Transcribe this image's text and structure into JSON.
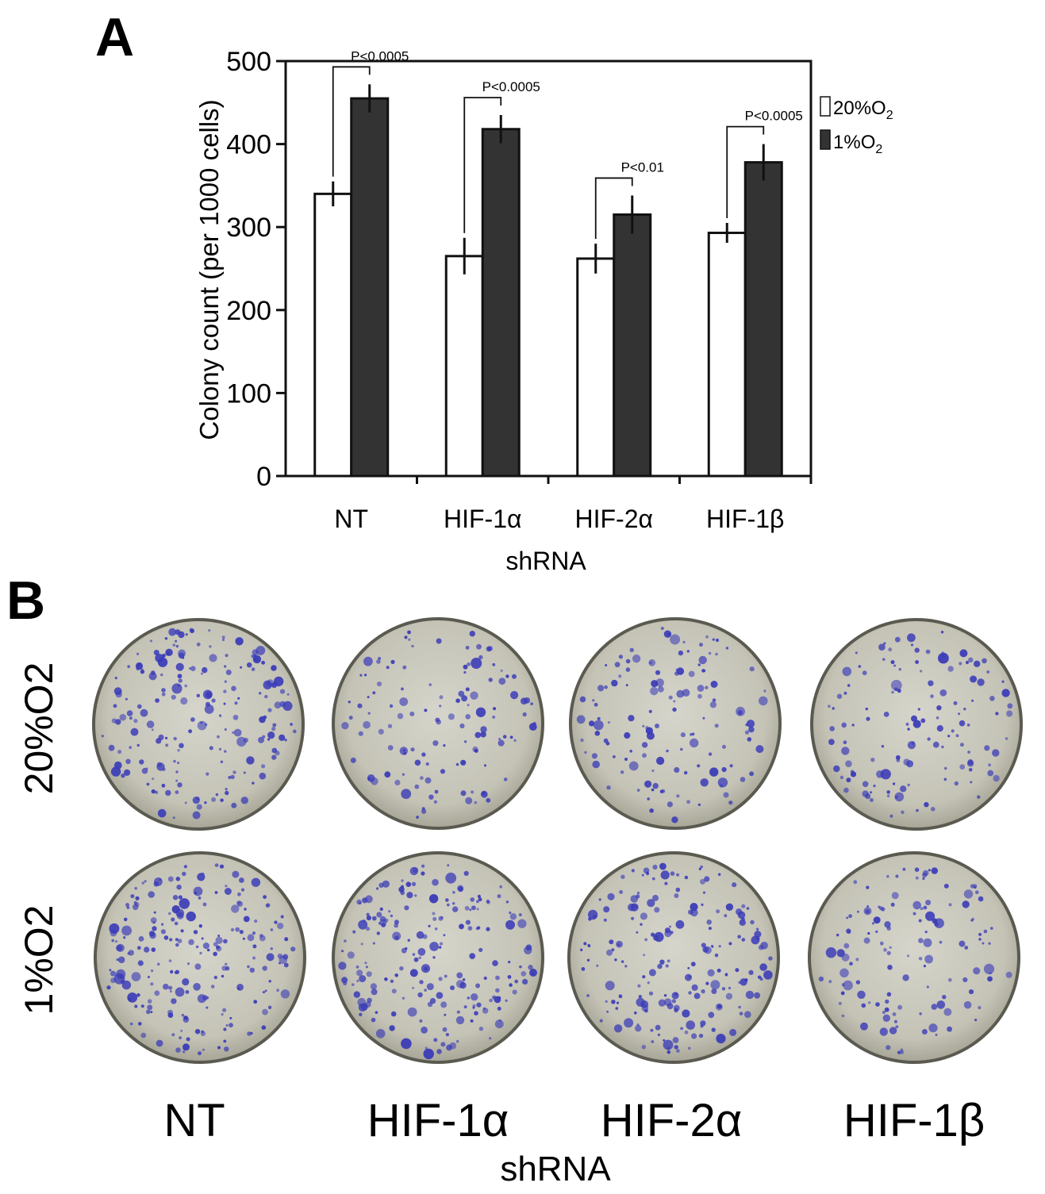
{
  "panel_a": {
    "letter": "A",
    "legend": [
      {
        "label": "20%O",
        "sub": "2",
        "color": "#ffffff"
      },
      {
        "label": "1%O",
        "sub": "2",
        "color": "#333333"
      }
    ]
  },
  "chart_data": {
    "type": "bar",
    "categories": [
      "NT",
      "HIF-1α",
      "HIF-2α",
      "HIF-1β"
    ],
    "series": [
      {
        "name": "20%O2",
        "values": [
          340,
          265,
          262,
          293
        ],
        "errors": [
          15,
          22,
          18,
          12
        ],
        "color": "#ffffff"
      },
      {
        "name": "1%O2",
        "values": [
          455,
          418,
          315,
          378
        ],
        "errors": [
          17,
          17,
          23,
          22
        ],
        "color": "#333333"
      }
    ],
    "pvalues": [
      "P<0.0005",
      "P<0.0005",
      "P<0.01",
      "P<0.0005"
    ],
    "xlabel": "shRNA",
    "ylabel": "Colony count (per 1000 cells)",
    "ylim": [
      0,
      500
    ],
    "yticks": [
      0,
      100,
      200,
      300,
      400,
      500
    ],
    "grid": false,
    "legend_position": "right"
  },
  "panel_b": {
    "letter": "B",
    "rows": [
      {
        "label": "20%O2"
      },
      {
        "label": "1%O2"
      }
    ],
    "columns": [
      "NT",
      "HIF-1α",
      "HIF-2α",
      "HIF-1β"
    ],
    "xlabel": "shRNA",
    "dish_colors": {
      "medium": "#c7c6ba",
      "stain": "#3a3bb8",
      "rim": "#5a5a50"
    }
  }
}
